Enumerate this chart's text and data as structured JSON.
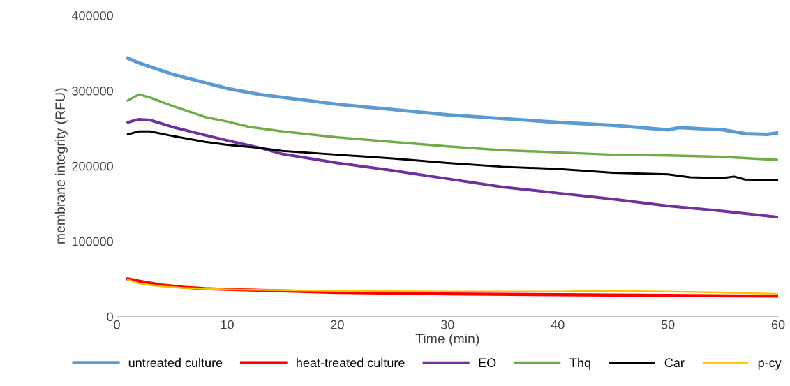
{
  "chart_data": {
    "type": "line",
    "xlabel": "Time (min)",
    "ylabel": "membrane integrity (RFU)",
    "xlim": [
      0,
      60
    ],
    "xticks": [
      0,
      10,
      20,
      30,
      40,
      50,
      60
    ],
    "ylim": [
      0,
      400000
    ],
    "yticks": [
      0,
      100000,
      200000,
      300000,
      400000
    ],
    "grid": false,
    "legend": "bottom",
    "marker": "none",
    "line_style": "solid",
    "series": [
      {
        "name": "untreated culture",
        "color": "#5b9bd5",
        "x": [
          1,
          2,
          5,
          10,
          13,
          20,
          25,
          30,
          35,
          40,
          45,
          50,
          51,
          55,
          57,
          59,
          60
        ],
        "values": [
          343000,
          337000,
          322000,
          303000,
          295000,
          282000,
          275000,
          268000,
          263000,
          258000,
          254000,
          248000,
          251000,
          248000,
          243000,
          242000,
          244000
        ]
      },
      {
        "name": "heat-treated culture",
        "color": "#ff0000",
        "x": [
          1,
          2,
          4,
          6,
          8,
          10,
          15,
          20,
          30,
          40,
          50,
          60
        ],
        "values": [
          50000,
          47000,
          42000,
          39000,
          37000,
          36000,
          34000,
          32000,
          30000,
          29000,
          28000,
          27000
        ]
      },
      {
        "name": "EO",
        "color": "#7030a0",
        "x": [
          1,
          2,
          3,
          5,
          8,
          10,
          13,
          15,
          20,
          25,
          30,
          35,
          40,
          45,
          50,
          55,
          60
        ],
        "values": [
          258000,
          262000,
          261000,
          252000,
          241000,
          234000,
          224000,
          216000,
          204000,
          194000,
          183000,
          172000,
          164000,
          156000,
          147000,
          140000,
          132000
        ]
      },
      {
        "name": "Thq",
        "color": "#70ad47",
        "x": [
          1,
          2,
          3,
          5,
          8,
          10,
          12,
          15,
          20,
          25,
          30,
          35,
          40,
          45,
          50,
          55,
          60
        ],
        "values": [
          287000,
          295000,
          291000,
          280000,
          265000,
          259000,
          252000,
          246000,
          238000,
          232000,
          226000,
          221000,
          218000,
          215000,
          214000,
          212000,
          208000
        ]
      },
      {
        "name": "Car",
        "color": "#000000",
        "x": [
          1,
          2,
          3,
          5,
          8,
          10,
          13,
          15,
          20,
          25,
          30,
          35,
          40,
          45,
          50,
          52,
          55,
          56,
          57,
          60
        ],
        "values": [
          242000,
          246000,
          246000,
          240000,
          232000,
          228000,
          224000,
          220000,
          215000,
          210000,
          204000,
          199000,
          196000,
          191000,
          189000,
          185000,
          184000,
          186000,
          182000,
          181000
        ]
      },
      {
        "name": "p-cy",
        "color": "#ffc000",
        "x": [
          1,
          2,
          4,
          6,
          10,
          15,
          20,
          30,
          40,
          44,
          50,
          55,
          60
        ],
        "values": [
          49000,
          44000,
          40000,
          38000,
          36000,
          35000,
          34000,
          33000,
          33000,
          34000,
          33000,
          32000,
          30000
        ]
      }
    ]
  }
}
